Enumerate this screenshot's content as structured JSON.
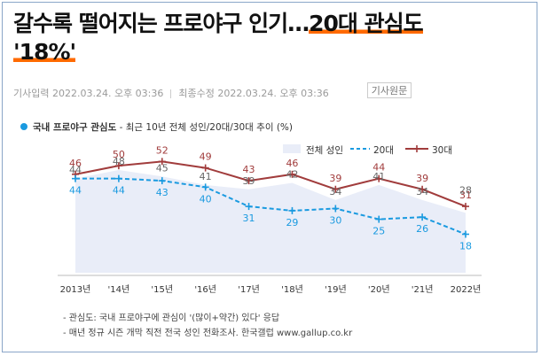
{
  "article": {
    "title_line1": "갈수록 떨어지는 프로야구 인기…",
    "title_highlight1": "20대 관심도",
    "title_line2_highlight": "'18%'",
    "posted": "기사입력 2022.03.24. 오후 03:36",
    "modified": "최종수정 2022.03.24. 오후 03:36",
    "original_button": "기사원문"
  },
  "colors": {
    "accent_blue": "#1a9ae0",
    "accent_red": "#a13c3c",
    "area_fill": "#e9edf8",
    "underline": "#ff6a00"
  },
  "chart_data": {
    "type": "line",
    "title": "국내 프로야구 관심도",
    "subtitle": "최근 10년 전체 성인/20대/30대 추이 (%)",
    "categories": [
      "2013년",
      "'14년",
      "'15년",
      "'16년",
      "'17년",
      "'18년",
      "'19년",
      "'20년",
      "'21년",
      "2022년"
    ],
    "ylim": [
      0,
      60
    ],
    "legend_position": "top-right",
    "series": [
      {
        "name": "전체 성인",
        "style": "area",
        "color": "#e9edf8",
        "values": [
          44,
          48,
          45,
          41,
          39,
          42,
          34,
          41,
          34,
          28
        ]
      },
      {
        "name": "20대",
        "style": "dashed",
        "color": "#1a9ae0",
        "values": [
          44,
          44,
          43,
          40,
          31,
          29,
          30,
          25,
          26,
          18
        ]
      },
      {
        "name": "30대",
        "style": "solid",
        "color": "#a13c3c",
        "values": [
          46,
          50,
          52,
          49,
          43,
          46,
          39,
          44,
          39,
          31
        ]
      }
    ]
  },
  "notes": [
    "- 관심도: 국내 프로야구에 관심이 '(많이+약간) 있다' 응답",
    "- 매년 정규 시즌 개막 직전 전국 성인 전화조사. 한국갤럽 www.gallup.co.kr"
  ]
}
